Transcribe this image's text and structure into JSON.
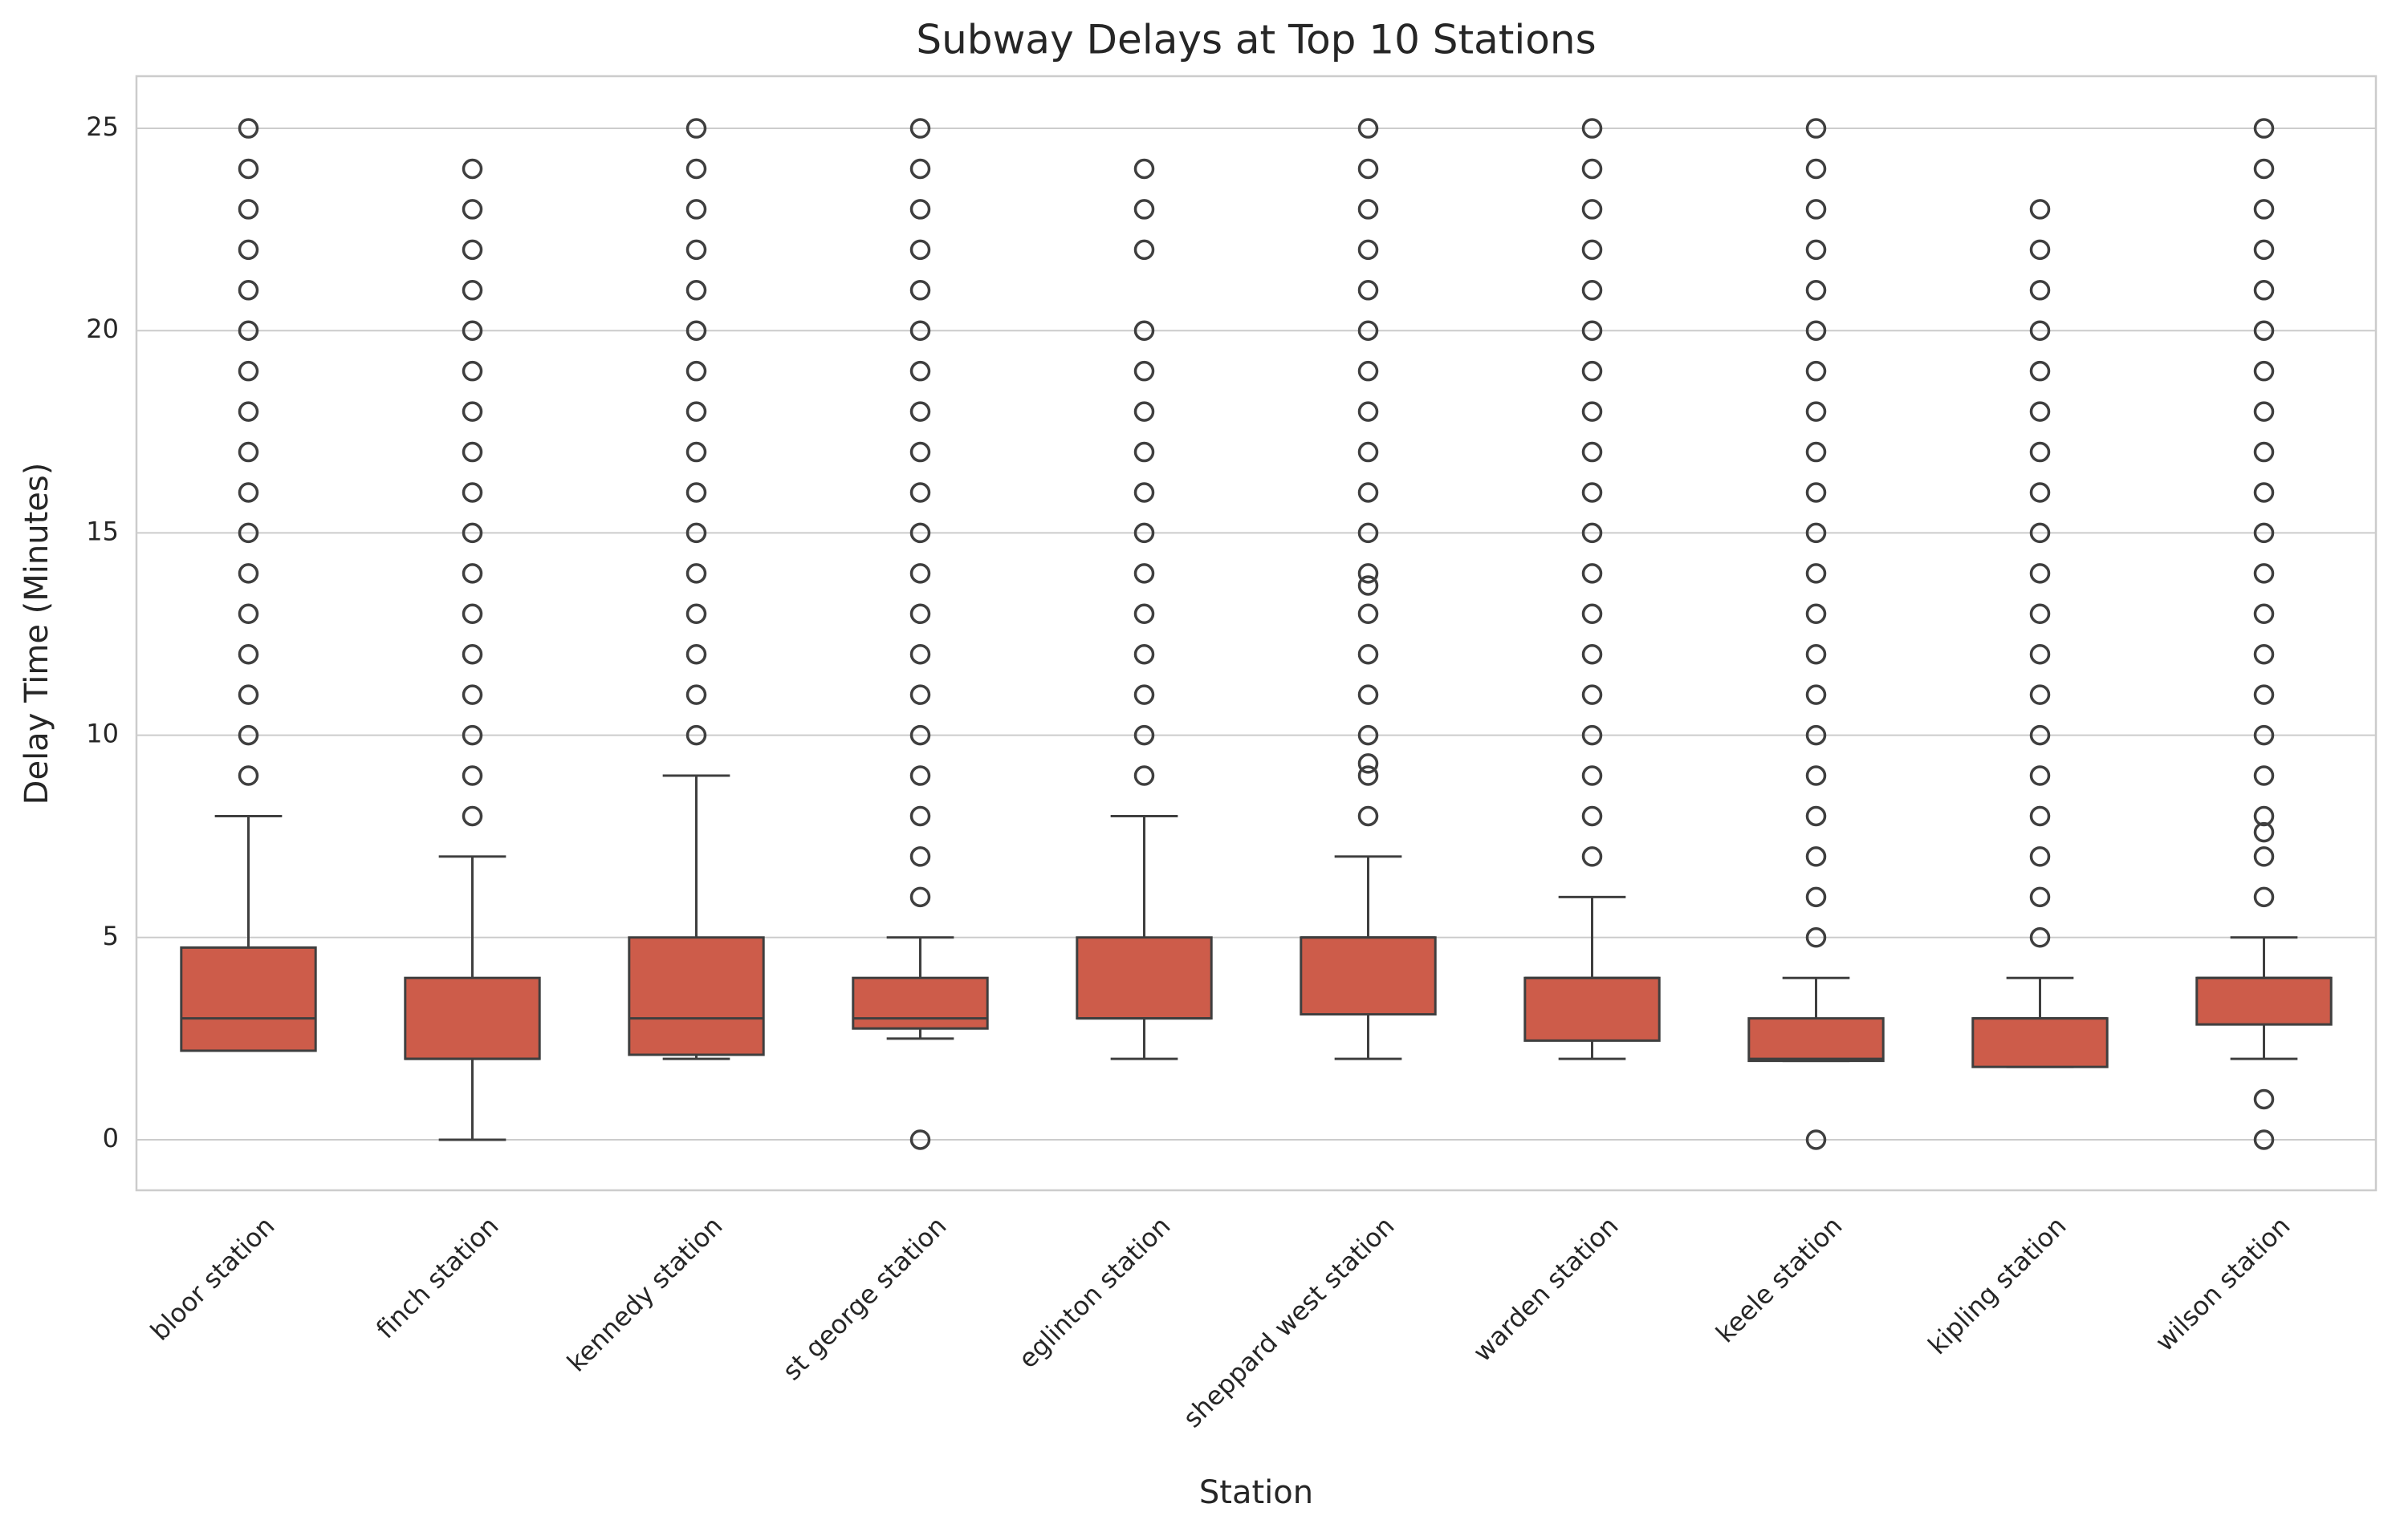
{
  "chart_data": {
    "type": "box",
    "title": "Subway Delays at Top 10 Stations",
    "xlabel": "Station",
    "ylabel": "Delay Time (Minutes)",
    "categories": [
      "bloor station",
      "finch station",
      "kennedy station",
      "st george station",
      "eglinton station",
      "sheppard west station",
      "warden station",
      "keele station",
      "kipling station",
      "wilson station"
    ],
    "color": "#cd5c4a",
    "ylim": [
      -1.25,
      26.29
    ],
    "yticks": [
      0,
      5,
      10,
      15,
      20,
      25
    ],
    "grid": true,
    "boxes": [
      {
        "low": 2.2,
        "q1": 2.2,
        "median": 3,
        "q3": 4.75,
        "high": 8,
        "outliers": [
          9,
          10,
          11,
          12,
          13,
          14,
          15,
          16,
          17,
          18,
          19,
          20,
          21,
          22,
          23,
          24,
          25
        ]
      },
      {
        "low": 0,
        "q1": 2,
        "median": 2,
        "q3": 4,
        "high": 7,
        "outliers": [
          8,
          9,
          10,
          11,
          12,
          13,
          14,
          15,
          16,
          17,
          18,
          19,
          20,
          21,
          22,
          23,
          24
        ]
      },
      {
        "low": 2,
        "q1": 2.1,
        "median": 3,
        "q3": 5,
        "high": 9,
        "outliers": [
          10,
          11,
          12,
          13,
          14,
          15,
          16,
          17,
          18,
          19,
          20,
          21,
          22,
          23,
          24,
          25
        ]
      },
      {
        "low": 2.5,
        "q1": 2.75,
        "median": 3,
        "q3": 4,
        "high": 5,
        "outliers": [
          0,
          6,
          7,
          8,
          9,
          10,
          11,
          12,
          13,
          14,
          15,
          16,
          17,
          18,
          19,
          20,
          21,
          22,
          23,
          24,
          25
        ]
      },
      {
        "low": 2,
        "q1": 3,
        "median": 3,
        "q3": 5,
        "high": 8,
        "outliers": [
          9,
          10,
          11,
          12,
          13,
          14,
          15,
          16,
          17,
          18,
          19,
          20,
          22,
          23,
          24
        ]
      },
      {
        "low": 2,
        "q1": 3.1,
        "median": 5,
        "q3": 5,
        "high": 7,
        "outliers": [
          8,
          9,
          9.3,
          10,
          11,
          12,
          13,
          13.7,
          14,
          15,
          16,
          17,
          18,
          19,
          20,
          21,
          22,
          23,
          24,
          25
        ]
      },
      {
        "low": 2,
        "q1": 2.45,
        "median": 4,
        "q3": 4,
        "high": 6,
        "outliers": [
          7,
          8,
          9,
          10,
          11,
          12,
          13,
          14,
          15,
          16,
          17,
          18,
          19,
          20,
          21,
          22,
          23,
          24,
          25
        ]
      },
      {
        "low": 1.95,
        "q1": 1.95,
        "median": 2,
        "q3": 3,
        "high": 4,
        "outliers": [
          0,
          5,
          6,
          7,
          8,
          9,
          10,
          11,
          12,
          13,
          14,
          15,
          16,
          17,
          18,
          19,
          20,
          21,
          22,
          23,
          24,
          25
        ]
      },
      {
        "low": 1.8,
        "q1": 1.8,
        "median": 3,
        "q3": 3,
        "high": 4,
        "outliers": [
          5,
          6,
          7,
          8,
          9,
          10,
          11,
          12,
          13,
          14,
          15,
          16,
          17,
          18,
          19,
          20,
          21,
          22,
          23
        ]
      },
      {
        "low": 2,
        "q1": 2.85,
        "median": 4,
        "q3": 4,
        "high": 5,
        "outliers": [
          0,
          1,
          6,
          7,
          7.6,
          8,
          9,
          10,
          11,
          12,
          13,
          14,
          15,
          16,
          17,
          18,
          19,
          20,
          21,
          22,
          23,
          24,
          25
        ]
      }
    ]
  }
}
